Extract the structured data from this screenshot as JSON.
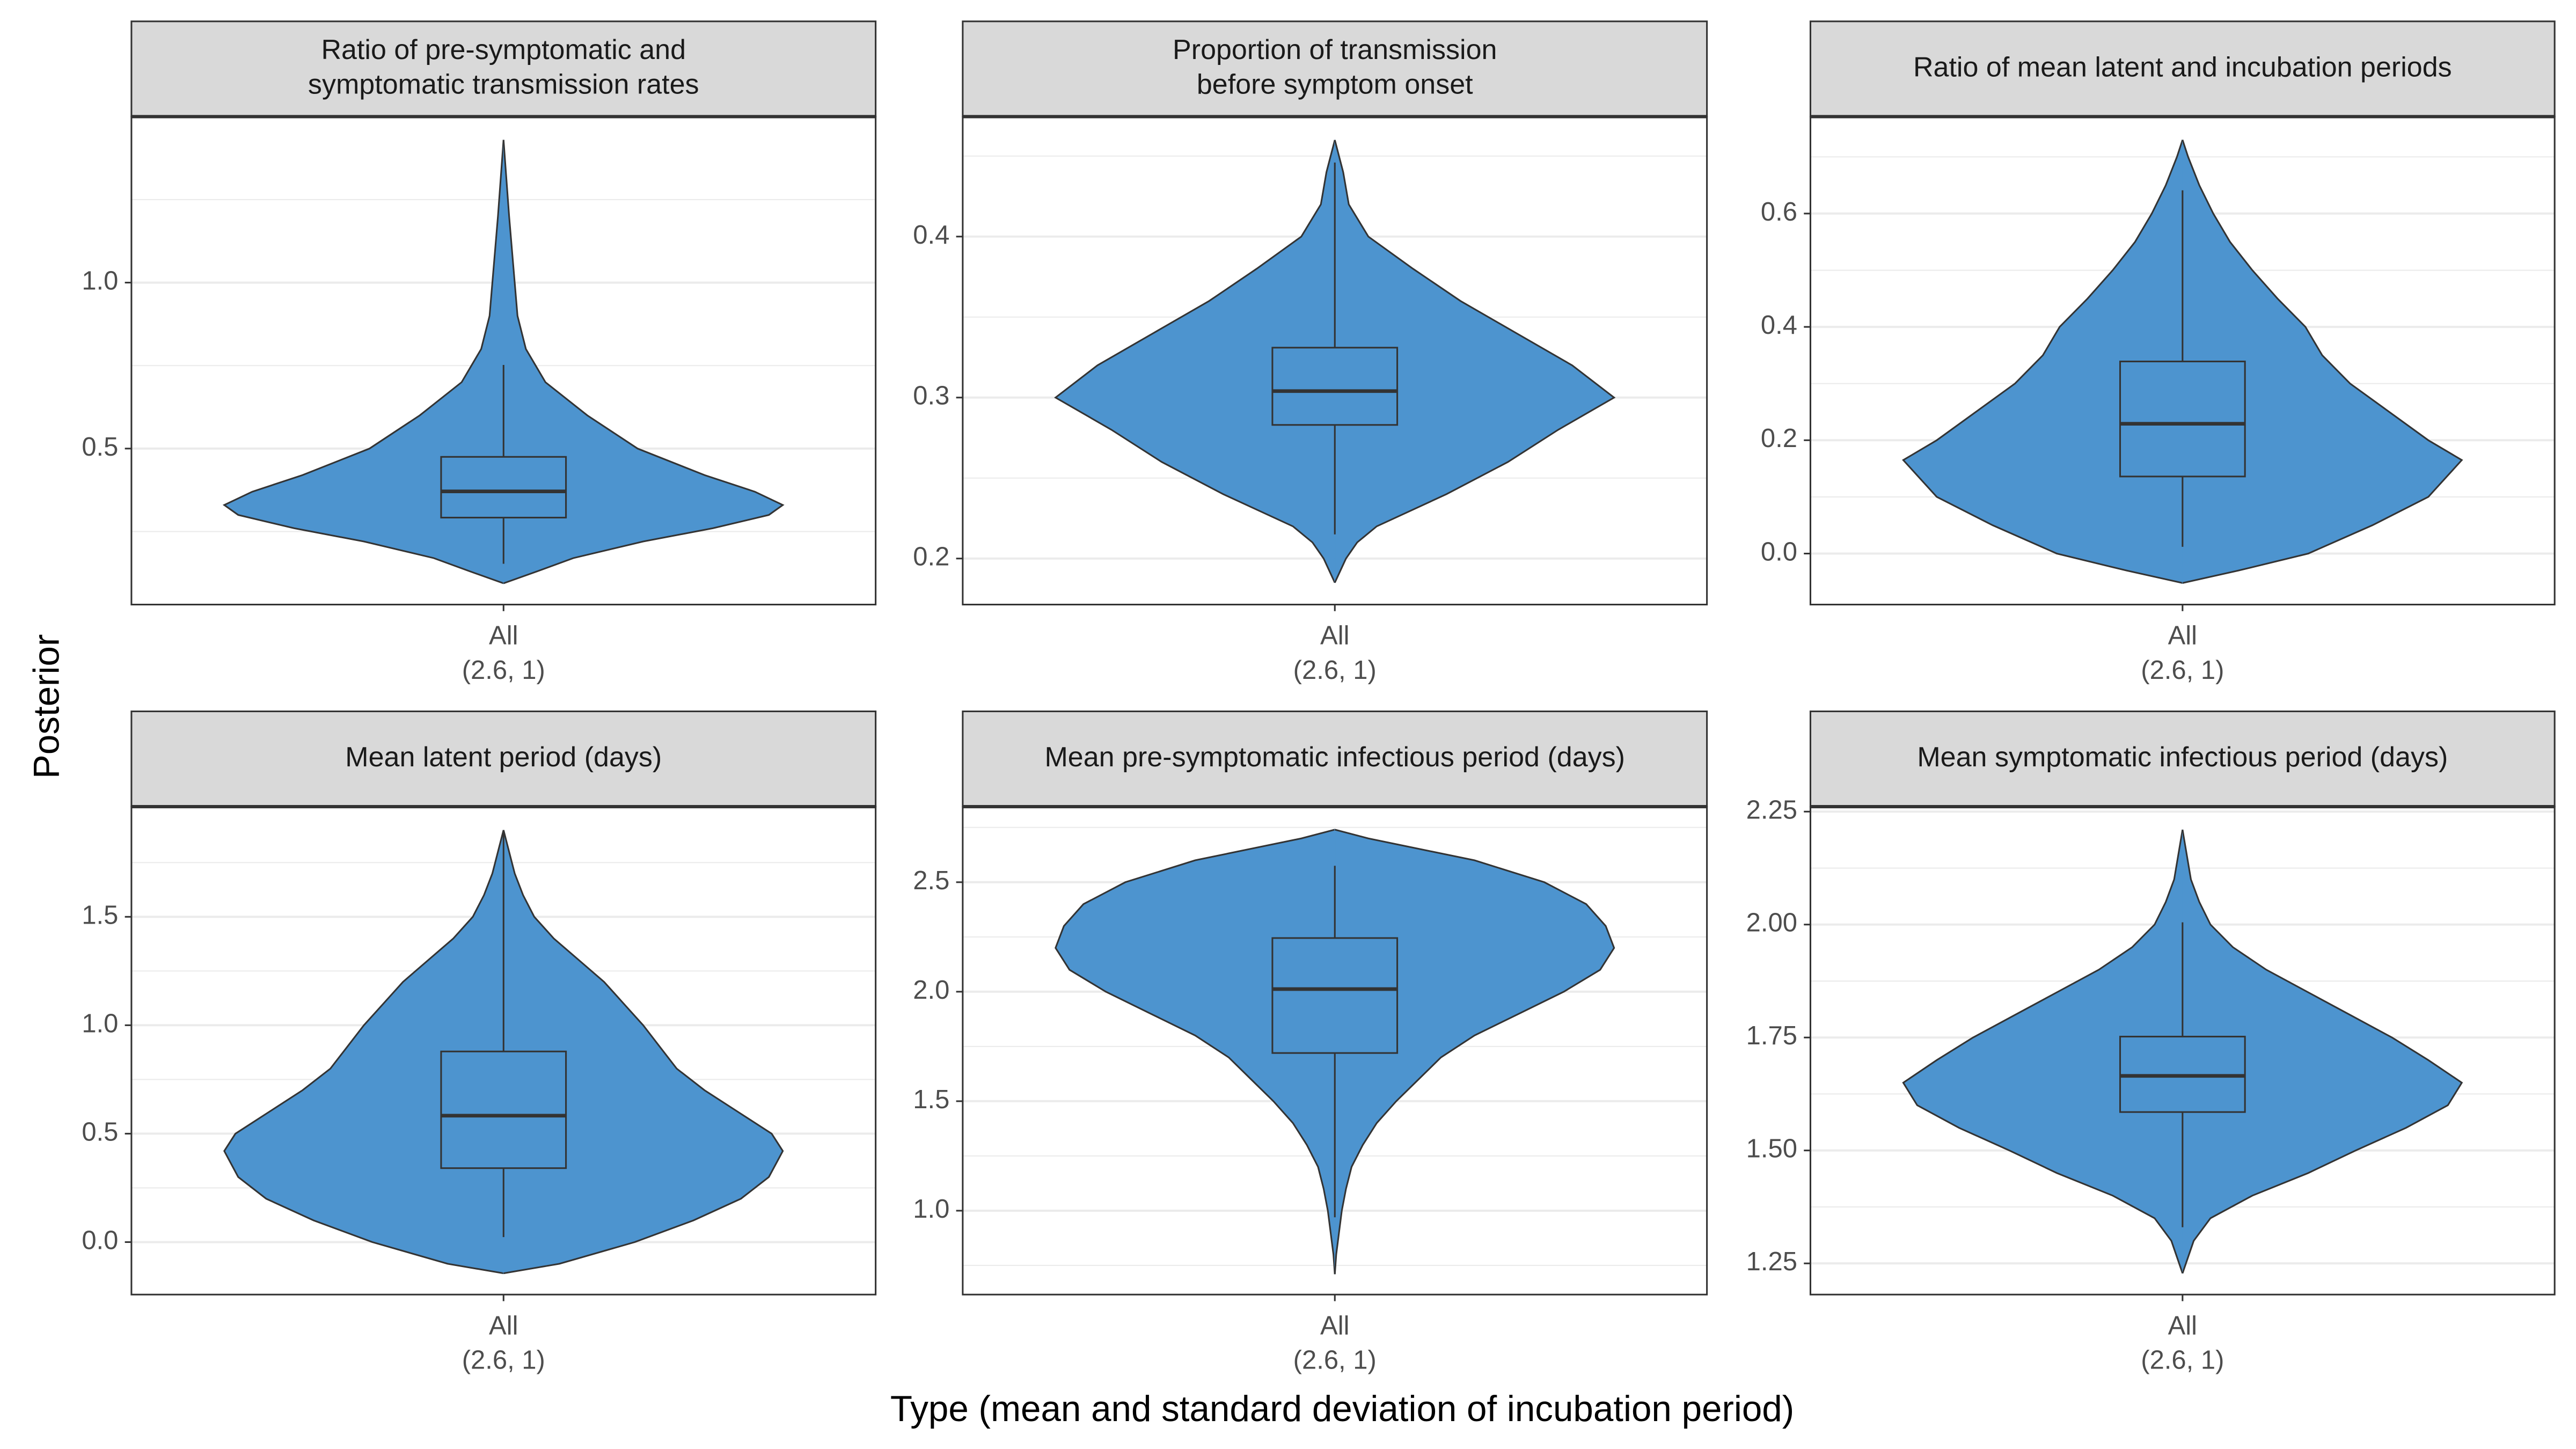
{
  "y_label": "Posterior",
  "x_label": "Type (mean and standard deviation of incubation period)",
  "chart_data": [
    {
      "type": "violin",
      "title_lines": [
        "Ratio of pre-symptomatic and",
        "symptomatic transmission rates"
      ],
      "categories": [
        "All"
      ],
      "category_sublabels": [
        "(2.6, 1)"
      ],
      "color": "#4d94cf",
      "ylim": [
        0.03,
        1.5
      ],
      "yticks": [
        0.5,
        {
          "value": 1,
          "label": "1.0"
        }
      ],
      "minor_yticks": [
        0.25,
        0.75,
        1.25
      ],
      "grid": true,
      "violin": {
        "y": [
          0.094,
          0.13,
          0.17,
          0.22,
          0.26,
          0.3,
          0.33,
          0.37,
          0.42,
          0.5,
          0.6,
          0.7,
          0.8,
          0.9,
          1.0,
          1.2,
          1.43
        ],
        "density": [
          0,
          0.12,
          0.25,
          0.5,
          0.75,
          0.95,
          1.0,
          0.9,
          0.72,
          0.48,
          0.3,
          0.15,
          0.08,
          0.05,
          0.04,
          0.02,
          0
        ]
      },
      "box": {
        "whisker_low": 0.153,
        "q1": 0.292,
        "median": 0.371,
        "q3": 0.475,
        "whisker_high": 0.752
      }
    },
    {
      "type": "violin",
      "title_lines": [
        "Proportion of transmission",
        "before symptom onset"
      ],
      "categories": [
        "All"
      ],
      "category_sublabels": [
        "(2.6, 1)"
      ],
      "color": "#4d94cf",
      "ylim": [
        0.1714,
        0.4745
      ],
      "yticks": [
        0.2,
        0.3,
        0.4
      ],
      "minor_yticks": [
        0.25,
        0.35,
        0.45
      ],
      "grid": true,
      "violin": {
        "y": [
          0.185,
          0.2,
          0.21,
          0.22,
          0.24,
          0.26,
          0.28,
          0.3,
          0.32,
          0.34,
          0.36,
          0.38,
          0.4,
          0.42,
          0.44,
          0.46
        ],
        "density": [
          0,
          0.04,
          0.08,
          0.15,
          0.4,
          0.62,
          0.8,
          1.0,
          0.85,
          0.65,
          0.45,
          0.28,
          0.12,
          0.05,
          0.03,
          0
        ]
      },
      "box": {
        "whisker_low": 0.215,
        "q1": 0.283,
        "median": 0.304,
        "q3": 0.331,
        "whisker_high": 0.446
      }
    },
    {
      "type": "violin",
      "title_lines": [
        "Ratio of mean latent and incubation periods"
      ],
      "categories": [
        "All"
      ],
      "category_sublabels": [
        "(2.6, 1)"
      ],
      "color": "#4d94cf",
      "ylim": [
        -0.09,
        0.771
      ],
      "yticks": [
        {
          "value": 0,
          "label": "0.0"
        },
        0.2,
        0.4,
        0.6
      ],
      "minor_yticks": [
        0.1,
        0.3,
        0.5,
        0.7
      ],
      "grid": true,
      "violin": {
        "y": [
          -0.052,
          -0.03,
          0.0,
          0.05,
          0.1,
          0.165,
          0.2,
          0.25,
          0.3,
          0.35,
          0.4,
          0.45,
          0.5,
          0.55,
          0.6,
          0.65,
          0.7,
          0.73
        ],
        "density": [
          0,
          0.2,
          0.45,
          0.68,
          0.88,
          1.0,
          0.88,
          0.74,
          0.6,
          0.5,
          0.44,
          0.34,
          0.25,
          0.17,
          0.11,
          0.06,
          0.02,
          0
        ]
      },
      "box": {
        "whisker_low": 0.012,
        "q1": 0.136,
        "median": 0.229,
        "q3": 0.339,
        "whisker_high": 0.641
      }
    },
    {
      "type": "violin",
      "title_lines": [
        "Mean latent period (days)"
      ],
      "categories": [
        "All"
      ],
      "category_sublabels": [
        "(2.6, 1)"
      ],
      "color": "#4d94cf",
      "ylim": [
        -0.242,
        2.008
      ],
      "yticks": [
        {
          "value": 0,
          "label": "0.0"
        },
        0.5,
        {
          "value": 1,
          "label": "1.0"
        },
        1.5
      ],
      "minor_yticks": [
        0.25,
        0.75,
        1.25,
        1.75
      ],
      "grid": true,
      "violin": {
        "y": [
          -0.144,
          -0.1,
          0.0,
          0.1,
          0.2,
          0.3,
          0.42,
          0.5,
          0.6,
          0.7,
          0.8,
          0.9,
          1.0,
          1.1,
          1.2,
          1.3,
          1.4,
          1.5,
          1.6,
          1.7,
          1.8,
          1.9
        ],
        "density": [
          0,
          0.2,
          0.47,
          0.68,
          0.85,
          0.95,
          1.0,
          0.96,
          0.84,
          0.72,
          0.62,
          0.56,
          0.5,
          0.43,
          0.36,
          0.27,
          0.18,
          0.11,
          0.07,
          0.04,
          0.02,
          0
        ]
      },
      "box": {
        "whisker_low": 0.023,
        "q1": 0.341,
        "median": 0.583,
        "q3": 0.879,
        "whisker_high": 1.9
      }
    },
    {
      "type": "violin",
      "title_lines": [
        "Mean pre-symptomatic infectious period (days)"
      ],
      "categories": [
        "All"
      ],
      "category_sublabels": [
        "(2.6, 1)"
      ],
      "color": "#4d94cf",
      "ylim": [
        0.617,
        2.845
      ],
      "yticks": [
        {
          "value": 1,
          "label": "1.0"
        },
        1.5,
        {
          "value": 2,
          "label": "2.0"
        },
        2.5
      ],
      "minor_yticks": [
        0.75,
        1.25,
        1.75,
        2.25,
        2.75
      ],
      "grid": true,
      "violin": {
        "y": [
          0.71,
          0.8,
          0.9,
          1.0,
          1.1,
          1.2,
          1.3,
          1.4,
          1.5,
          1.6,
          1.7,
          1.8,
          1.9,
          2.0,
          2.1,
          2.2,
          2.3,
          2.4,
          2.5,
          2.6,
          2.7,
          2.74
        ],
        "density": [
          0,
          0.005,
          0.015,
          0.025,
          0.04,
          0.06,
          0.1,
          0.15,
          0.22,
          0.3,
          0.38,
          0.5,
          0.66,
          0.82,
          0.95,
          1.0,
          0.97,
          0.9,
          0.75,
          0.5,
          0.12,
          0
        ]
      },
      "box": {
        "whisker_low": 0.97,
        "q1": 1.72,
        "median": 2.012,
        "q3": 2.245,
        "whisker_high": 2.575
      }
    },
    {
      "type": "violin",
      "title_lines": [
        "Mean symptomatic infectious period (days)"
      ],
      "categories": [
        "All"
      ],
      "category_sublabels": [
        "(2.6, 1)"
      ],
      "color": "#4d94cf",
      "ylim": [
        1.181,
        2.261
      ],
      "yticks": [
        1.25,
        {
          "value": 1.5,
          "label": "1.50"
        },
        1.75,
        {
          "value": 2,
          "label": "2.00"
        },
        2.25
      ],
      "minor_yticks": [
        1.375,
        1.625,
        1.875,
        2.125
      ],
      "grid": true,
      "violin": {
        "y": [
          1.228,
          1.3,
          1.35,
          1.4,
          1.45,
          1.5,
          1.55,
          1.6,
          1.65,
          1.7,
          1.75,
          1.8,
          1.85,
          1.9,
          1.95,
          2.0,
          2.05,
          2.1,
          2.21
        ],
        "density": [
          0,
          0.04,
          0.1,
          0.25,
          0.45,
          0.62,
          0.8,
          0.95,
          1.0,
          0.88,
          0.75,
          0.6,
          0.45,
          0.3,
          0.18,
          0.1,
          0.06,
          0.03,
          0
        ]
      },
      "box": {
        "whisker_low": 1.33,
        "q1": 1.585,
        "median": 1.665,
        "q3": 1.752,
        "whisker_high": 2.005
      }
    }
  ]
}
